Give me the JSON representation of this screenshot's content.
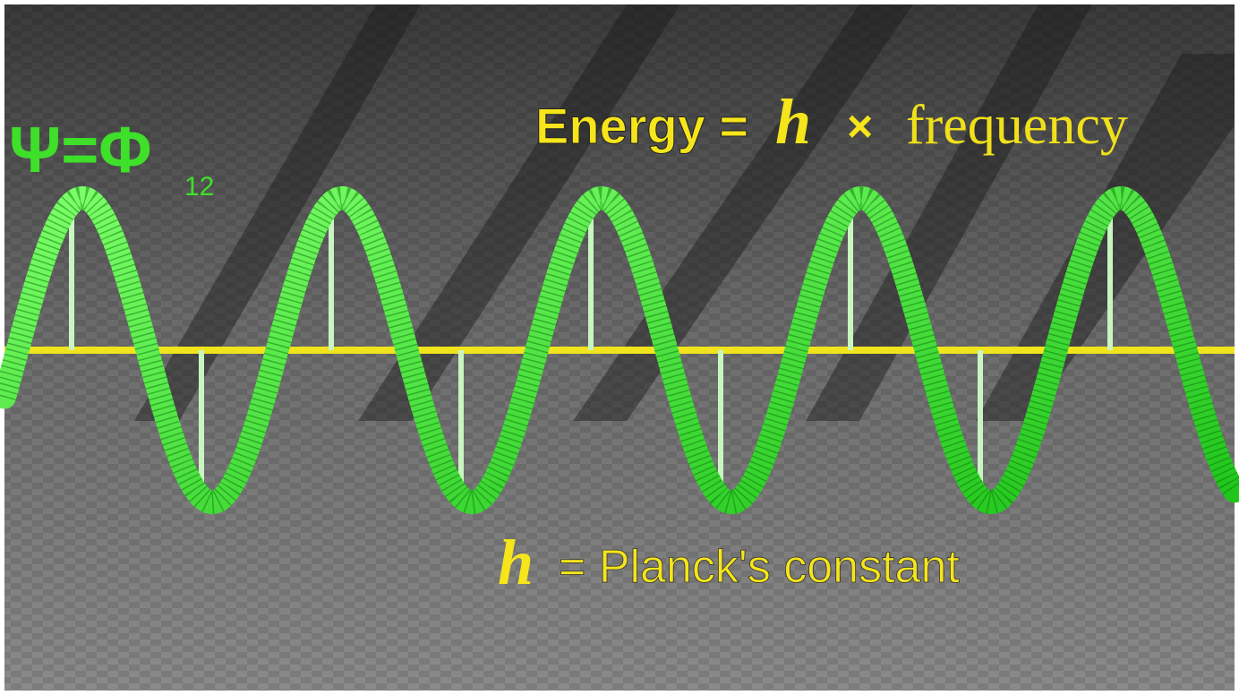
{
  "formula": {
    "symbol": "Ψ=Φ",
    "subscript": "12"
  },
  "equation": {
    "left": "Energy =",
    "h": "h",
    "times": "×",
    "right": "frequency"
  },
  "definition": {
    "h": "h",
    "text": "= Planck's constant"
  }
}
